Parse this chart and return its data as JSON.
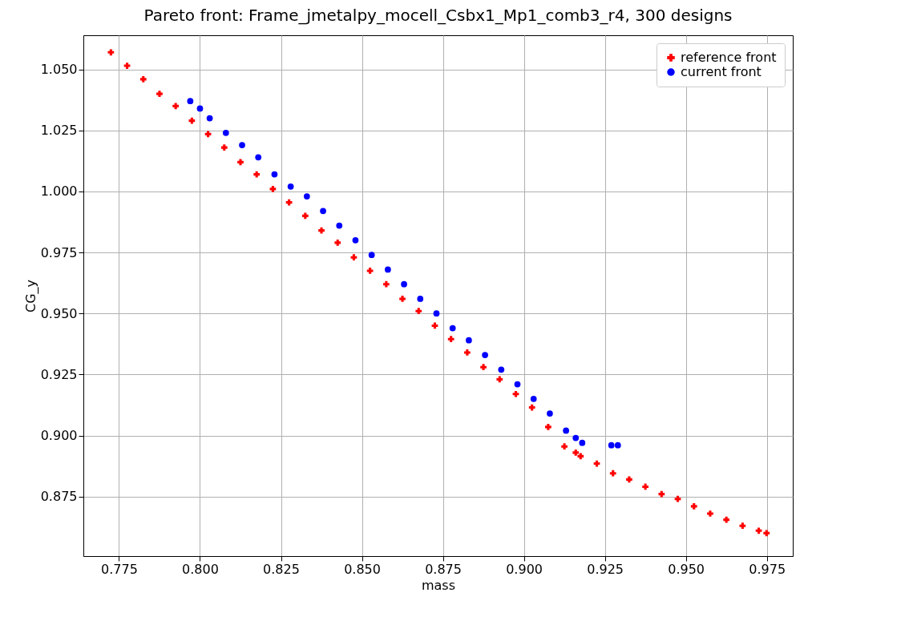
{
  "chart_data": {
    "type": "scatter",
    "title": "Pareto front: Frame_jmetalpy_mocell_Csbx1_Mp1_comb3_r4, 300 designs",
    "xlabel": "mass",
    "ylabel": "CG_y",
    "xlim": [
      0.764,
      0.983
    ],
    "ylim": [
      0.8506,
      1.064
    ],
    "xticks": [
      0.775,
      {
        "value": 0.8,
        "label": "0.800"
      },
      0.825,
      {
        "value": 0.85,
        "label": "0.850"
      },
      0.875,
      {
        "value": 0.9,
        "label": "0.900"
      },
      0.925,
      {
        "value": 0.95,
        "label": "0.950"
      },
      0.975
    ],
    "yticks": [
      0.875,
      {
        "value": 0.9,
        "label": "0.900"
      },
      0.925,
      {
        "value": 0.95,
        "label": "0.950"
      },
      0.975,
      {
        "value": 1,
        "label": "1.000"
      },
      1.025,
      {
        "value": 1.05,
        "label": "1.050"
      }
    ],
    "grid": true,
    "legend": "top right",
    "series": [
      {
        "name": "reference front",
        "color": "#ff0000",
        "marker": "cross",
        "x": [
          0.7725,
          0.7775,
          0.7825,
          0.7875,
          0.7925,
          0.7975,
          0.8025,
          0.8075,
          0.8125,
          0.8175,
          0.8225,
          0.8275,
          0.8325,
          0.8375,
          0.8425,
          0.8475,
          0.8525,
          0.8575,
          0.8625,
          0.8675,
          0.8725,
          0.8775,
          0.8825,
          0.8875,
          0.8925,
          0.8975,
          0.9025,
          0.9075,
          0.9125,
          0.916,
          0.9175,
          0.9225,
          0.9275,
          0.9325,
          0.9375,
          0.9425,
          0.9475,
          0.9525,
          0.9575,
          0.9625,
          0.9675,
          0.9725,
          0.9749
        ],
        "values": [
          1.057,
          1.0515,
          1.046,
          1.04,
          1.035,
          1.029,
          1.0235,
          1.018,
          1.012,
          1.007,
          1.001,
          0.9955,
          0.99,
          0.984,
          0.979,
          0.973,
          0.9675,
          0.962,
          0.956,
          0.951,
          0.945,
          0.9395,
          0.934,
          0.928,
          0.923,
          0.917,
          0.9115,
          0.9035,
          0.8955,
          0.893,
          0.8915,
          0.8885,
          0.8845,
          0.882,
          0.879,
          0.876,
          0.874,
          0.871,
          0.868,
          0.8655,
          0.863,
          0.861,
          0.86
        ]
      },
      {
        "name": "current front",
        "color": "#0000ff",
        "marker": "circle",
        "x": [
          0.797,
          0.8,
          0.803,
          0.808,
          0.813,
          0.818,
          0.823,
          0.828,
          0.833,
          0.838,
          0.843,
          0.848,
          0.853,
          0.858,
          0.863,
          0.868,
          0.873,
          0.878,
          0.883,
          0.888,
          0.893,
          0.898,
          0.903,
          0.908,
          0.913,
          0.916,
          0.918,
          0.927,
          0.929
        ],
        "values": [
          1.037,
          1.034,
          1.03,
          1.024,
          1.019,
          1.014,
          1.007,
          1.002,
          0.998,
          0.992,
          0.986,
          0.98,
          0.974,
          0.968,
          0.962,
          0.956,
          0.95,
          0.944,
          0.939,
          0.933,
          0.927,
          0.921,
          0.915,
          0.909,
          0.902,
          0.899,
          0.897,
          0.896,
          0.896
        ]
      }
    ]
  }
}
